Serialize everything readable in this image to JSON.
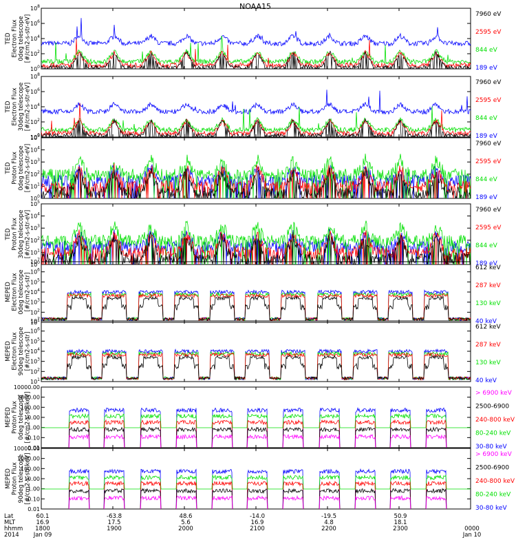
{
  "title": "NOAA15",
  "colors": {
    "black": "#000000",
    "blue": "#0000ff",
    "red": "#ff0000",
    "green": "#00e000",
    "magenta": "#ff00ff"
  },
  "panels": [
    {
      "id": "ted-e-0",
      "ylabel": [
        "TED",
        "Electron Flux",
        "0deg telescope",
        "[#/cm2-s-str-eV]"
      ],
      "ticks": [
        {
          "exp": "0"
        },
        {
          "exp": "2"
        },
        {
          "exp": "4"
        },
        {
          "exp": "6"
        },
        {
          "exp": "8"
        }
      ],
      "legend": [
        {
          "text": "7960 eV",
          "color": "black"
        },
        {
          "text": "2595 eV",
          "color": "red"
        },
        {
          "text": "844 eV",
          "color": "green"
        },
        {
          "text": "189 eV",
          "color": "blue"
        }
      ]
    },
    {
      "id": "ted-e-30",
      "ylabel": [
        "TED",
        "Electron Flux",
        "30deg telescope",
        "[#/cm2-s-str-eV]"
      ],
      "ticks": [
        {
          "exp": "0"
        },
        {
          "exp": "2"
        },
        {
          "exp": "4"
        },
        {
          "exp": "6"
        },
        {
          "exp": "8"
        }
      ],
      "legend": [
        {
          "text": "7960 eV",
          "color": "black"
        },
        {
          "text": "2595 eV",
          "color": "red"
        },
        {
          "text": "844 eV",
          "color": "green"
        },
        {
          "text": "189 eV",
          "color": "blue"
        }
      ]
    },
    {
      "id": "ted-p-0",
      "ylabel": [
        "TED",
        "Proton Flux",
        "0deg telescope",
        "[#/cm2-s-str-eV]"
      ],
      "ticks": [
        {
          "exp": "0"
        },
        {
          "exp": "1"
        },
        {
          "exp": "2"
        },
        {
          "exp": "3"
        },
        {
          "exp": "4"
        },
        {
          "exp": "5"
        }
      ],
      "legend": [
        {
          "text": "7960 eV",
          "color": "black"
        },
        {
          "text": "2595 eV",
          "color": "red"
        },
        {
          "text": "844 eV",
          "color": "green"
        },
        {
          "text": "189 eV",
          "color": "blue"
        }
      ]
    },
    {
      "id": "ted-p-30",
      "ylabel": [
        "TED",
        "Proton Flux",
        "30deg telescope",
        "[#/cm2-s-str-eV]"
      ],
      "ticks": [
        {
          "exp": "0"
        },
        {
          "exp": "1"
        },
        {
          "exp": "2"
        },
        {
          "exp": "3"
        },
        {
          "exp": "4"
        },
        {
          "exp": "5"
        }
      ],
      "legend": [
        {
          "text": "7960 eV",
          "color": "black"
        },
        {
          "text": "2595 eV",
          "color": "red"
        },
        {
          "text": "844 eV",
          "color": "green"
        },
        {
          "text": "189 eV",
          "color": "blue"
        }
      ]
    },
    {
      "id": "meped-e-0",
      "ylabel": [
        "MEPED",
        "Electron Flux",
        "0deg telescope",
        "[#/cm2-s-str]"
      ],
      "ticks": [
        {
          "exp": "1"
        },
        {
          "exp": "2"
        },
        {
          "exp": "3"
        },
        {
          "exp": "4"
        },
        {
          "exp": "5"
        },
        {
          "exp": "6"
        },
        {
          "exp": "7"
        }
      ],
      "legend": [
        {
          "text": "612 keV",
          "color": "black"
        },
        {
          "text": "287 keV",
          "color": "red"
        },
        {
          "text": "130 keV",
          "color": "green"
        },
        {
          "text": "40 keV",
          "color": "blue"
        }
      ]
    },
    {
      "id": "meped-e-90",
      "ylabel": [
        "MEPED",
        "Electron Flux",
        "90deg telescope",
        "[#/cm2-s-str]"
      ],
      "ticks": [
        {
          "exp": "1"
        },
        {
          "exp": "2"
        },
        {
          "exp": "3"
        },
        {
          "exp": "4"
        },
        {
          "exp": "5"
        },
        {
          "exp": "6"
        },
        {
          "exp": "7"
        }
      ],
      "legend": [
        {
          "text": "612 keV",
          "color": "black"
        },
        {
          "text": "287 keV",
          "color": "red"
        },
        {
          "text": "130 keV",
          "color": "green"
        },
        {
          "text": "40 keV",
          "color": "blue"
        }
      ]
    },
    {
      "id": "meped-p-0",
      "ylabel": [
        "MEPED",
        "Proton Flux",
        "0deg telescope",
        "[#/cm2-s-str-keV]"
      ],
      "ticks": [
        {
          "label": "0.01"
        },
        {
          "label": "0.10"
        },
        {
          "label": "1.00"
        },
        {
          "label": "10.00"
        },
        {
          "label": "100.00"
        },
        {
          "label": "1000.00"
        },
        {
          "label": "10000.00"
        }
      ],
      "legend": [
        {
          "text": "> 6900 keV",
          "color": "magenta"
        },
        {
          "text": "2500-6900",
          "color": "black"
        },
        {
          "text": "240-800 keV",
          "color": "red"
        },
        {
          "text": "80-240 keV",
          "color": "green"
        },
        {
          "text": "30-80 keV",
          "color": "blue"
        }
      ]
    },
    {
      "id": "meped-p-90",
      "ylabel": [
        "MEPED",
        "Proton Flux",
        "90deg telescope",
        "[#/cm2-s-str-keV]"
      ],
      "ticks": [
        {
          "label": "0.01"
        },
        {
          "label": "0.10"
        },
        {
          "label": "1.00"
        },
        {
          "label": "10.00"
        },
        {
          "label": "100.00"
        },
        {
          "label": "1000.00"
        },
        {
          "label": "10000.00"
        }
      ],
      "legend": [
        {
          "text": "> 6900 keV",
          "color": "magenta"
        },
        {
          "text": "2500-6900",
          "color": "black"
        },
        {
          "text": "240-800 keV",
          "color": "red"
        },
        {
          "text": "80-240 keV",
          "color": "green"
        },
        {
          "text": "30-80 keV",
          "color": "blue"
        }
      ]
    }
  ],
  "xaxis": {
    "row_labels": [
      "Lat",
      "MLT",
      "hhmm",
      "2014"
    ],
    "columns": [
      {
        "lat": "60.1",
        "mlt": "16.9",
        "hhmm": "1800",
        "date": "Jan 09"
      },
      {
        "lat": "-63.8",
        "mlt": "17.5",
        "hhmm": "1900",
        "date": ""
      },
      {
        "lat": "48.6",
        "mlt": "5.6",
        "hhmm": "2000",
        "date": ""
      },
      {
        "lat": "-14.0",
        "mlt": "16.9",
        "hhmm": "2100",
        "date": ""
      },
      {
        "lat": "-19.5",
        "mlt": "4.8",
        "hhmm": "2200",
        "date": ""
      },
      {
        "lat": "50.9",
        "mlt": "18.1",
        "hhmm": "2300",
        "date": ""
      },
      {
        "lat": "",
        "mlt": "",
        "hhmm": "0000",
        "date": "Jan 10"
      }
    ]
  },
  "chart_data": {
    "type": "line",
    "title": "NOAA15",
    "x_range": [
      "2014-01-09 18:00",
      "2014-01-10 00:00"
    ],
    "x": [
      "18:00",
      "19:00",
      "20:00",
      "21:00",
      "22:00",
      "23:00",
      "00:00"
    ],
    "subplots": [
      {
        "ylabel": "TED Electron Flux 0deg telescope [#/cm2-s-str-eV]",
        "yscale": "log",
        "ylim": [
          1,
          100000000
        ],
        "series": [
          {
            "name": "7960 eV",
            "color": "black"
          },
          {
            "name": "2595 eV",
            "color": "red"
          },
          {
            "name": "844 eV",
            "color": "green"
          },
          {
            "name": "189 eV",
            "color": "blue"
          }
        ]
      },
      {
        "ylabel": "TED Electron Flux 30deg telescope [#/cm2-s-str-eV]",
        "yscale": "log",
        "ylim": [
          1,
          100000000
        ],
        "series": [
          {
            "name": "7960 eV",
            "color": "black"
          },
          {
            "name": "2595 eV",
            "color": "red"
          },
          {
            "name": "844 eV",
            "color": "green"
          },
          {
            "name": "189 eV",
            "color": "blue"
          }
        ]
      },
      {
        "ylabel": "TED Proton Flux 0deg telescope [#/cm2-s-str-eV]",
        "yscale": "log",
        "ylim": [
          1,
          100000
        ],
        "series": [
          {
            "name": "7960 eV",
            "color": "black"
          },
          {
            "name": "2595 eV",
            "color": "red"
          },
          {
            "name": "844 eV",
            "color": "green"
          },
          {
            "name": "189 eV",
            "color": "blue"
          }
        ]
      },
      {
        "ylabel": "TED Proton Flux 30deg telescope [#/cm2-s-str-eV]",
        "yscale": "log",
        "ylim": [
          1,
          100000
        ],
        "series": [
          {
            "name": "7960 eV",
            "color": "black"
          },
          {
            "name": "2595 eV",
            "color": "red"
          },
          {
            "name": "844 eV",
            "color": "green"
          },
          {
            "name": "189 eV",
            "color": "blue"
          }
        ]
      },
      {
        "ylabel": "MEPED Electron Flux 0deg telescope [#/cm2-s-str]",
        "yscale": "log",
        "ylim": [
          10,
          10000000
        ],
        "series": [
          {
            "name": "612 keV",
            "color": "black"
          },
          {
            "name": "287 keV",
            "color": "red"
          },
          {
            "name": "130 keV",
            "color": "green"
          },
          {
            "name": "40 keV",
            "color": "blue"
          }
        ]
      },
      {
        "ylabel": "MEPED Electron Flux 90deg telescope [#/cm2-s-str]",
        "yscale": "log",
        "ylim": [
          10,
          10000000
        ],
        "series": [
          {
            "name": "612 keV",
            "color": "black"
          },
          {
            "name": "287 keV",
            "color": "red"
          },
          {
            "name": "130 keV",
            "color": "green"
          },
          {
            "name": "40 keV",
            "color": "blue"
          }
        ]
      },
      {
        "ylabel": "MEPED Proton Flux 0deg telescope [#/cm2-s-str-keV]",
        "yscale": "log",
        "ylim": [
          0.01,
          10000
        ],
        "series": [
          {
            "name": "> 6900 keV",
            "color": "magenta"
          },
          {
            "name": "2500-6900",
            "color": "black"
          },
          {
            "name": "240-800 keV",
            "color": "red"
          },
          {
            "name": "80-240 keV",
            "color": "green"
          },
          {
            "name": "30-80 keV",
            "color": "blue"
          }
        ]
      },
      {
        "ylabel": "MEPED Proton Flux 90deg telescope [#/cm2-s-str-keV]",
        "yscale": "log",
        "ylim": [
          0.01,
          10000
        ],
        "series": [
          {
            "name": "> 6900 keV",
            "color": "magenta"
          },
          {
            "name": "2500-6900",
            "color": "black"
          },
          {
            "name": "240-800 keV",
            "color": "red"
          },
          {
            "name": "80-240 keV",
            "color": "green"
          },
          {
            "name": "30-80 keV",
            "color": "blue"
          }
        ]
      }
    ],
    "pass_centers_hours": [
      0.53,
      1.02,
      1.53,
      2.03,
      2.53,
      3.02,
      3.52,
      4.03,
      4.53,
      5.02,
      5.52
    ]
  }
}
